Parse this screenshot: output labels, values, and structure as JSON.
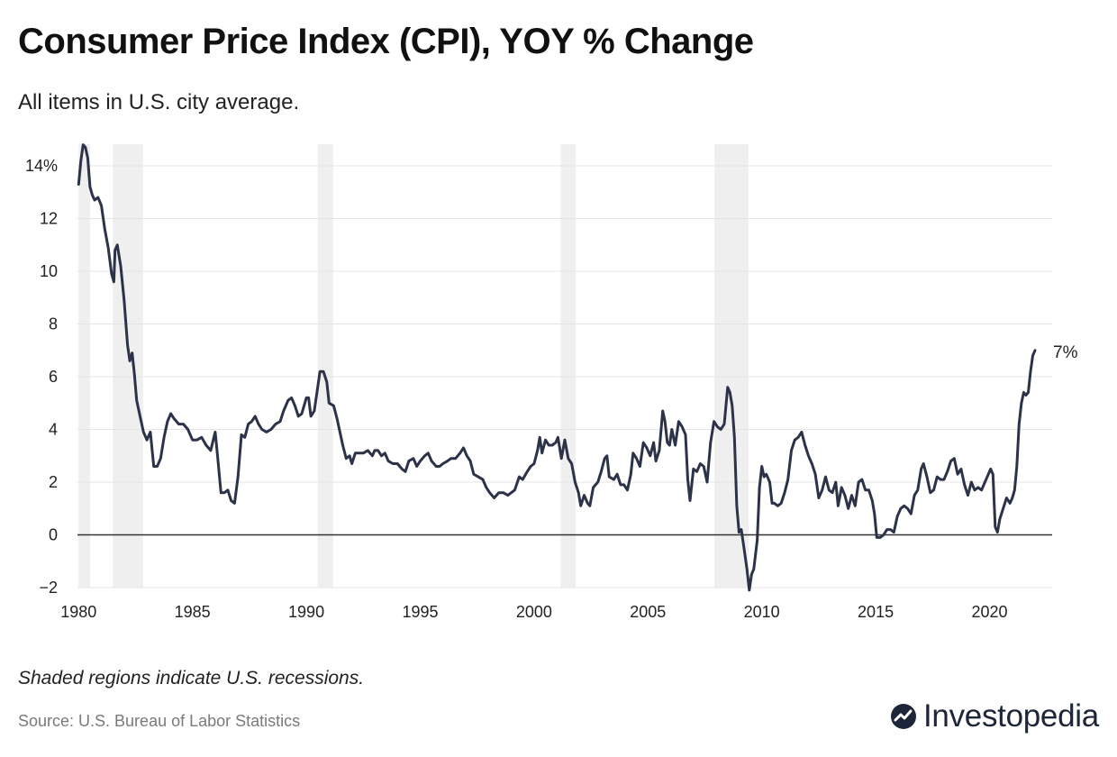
{
  "title": "Consumer Price Index (CPI), YOY % Change",
  "subtitle": "All items in U.S. city average.",
  "note": "Shaded regions indicate U.S. recessions.",
  "source": "Source: U.S. Bureau of Labor Statistics",
  "brand": "Investopedia",
  "colors": {
    "line": "#2c3349",
    "recession": "#efefef",
    "grid": "#e4e4e4",
    "zero_line": "#333333"
  },
  "chart_data": {
    "type": "line",
    "title": "Consumer Price Index (CPI), YOY % Change",
    "xlabel": "",
    "ylabel": "",
    "xlim": [
      1979.95,
      2022.75
    ],
    "ylim": [
      -2,
      14
    ],
    "x_ticks": [
      1980,
      1985,
      1990,
      1995,
      2000,
      2005,
      2010,
      2015,
      2020
    ],
    "y_ticks": [
      -2,
      0,
      2,
      4,
      6,
      8,
      10,
      12,
      14
    ],
    "y_tick_labels": [
      "−2",
      "0",
      "2",
      "4",
      "6",
      "8",
      "10",
      "12",
      "14%"
    ],
    "grid": true,
    "recessions": [
      [
        1980.0,
        1980.5
      ],
      [
        1981.5,
        1982.83
      ],
      [
        1990.5,
        1991.17
      ],
      [
        2001.17,
        2001.83
      ],
      [
        2007.92,
        2009.42
      ]
    ],
    "end_label": "7%",
    "series": [
      {
        "name": "CPI YOY % change",
        "points": [
          [
            1980.0,
            13.3
          ],
          [
            1980.1,
            14.2
          ],
          [
            1980.2,
            14.8
          ],
          [
            1980.3,
            14.7
          ],
          [
            1980.4,
            14.3
          ],
          [
            1980.5,
            13.2
          ],
          [
            1980.6,
            12.9
          ],
          [
            1980.7,
            12.7
          ],
          [
            1980.85,
            12.8
          ],
          [
            1981.0,
            12.5
          ],
          [
            1981.15,
            11.6
          ],
          [
            1981.3,
            10.9
          ],
          [
            1981.45,
            9.9
          ],
          [
            1981.55,
            9.6
          ],
          [
            1981.6,
            10.8
          ],
          [
            1981.7,
            11.0
          ],
          [
            1981.85,
            10.2
          ],
          [
            1982.0,
            8.9
          ],
          [
            1982.15,
            7.2
          ],
          [
            1982.25,
            6.6
          ],
          [
            1982.35,
            6.9
          ],
          [
            1982.45,
            6.1
          ],
          [
            1982.55,
            5.1
          ],
          [
            1982.7,
            4.5
          ],
          [
            1982.85,
            3.9
          ],
          [
            1983.0,
            3.6
          ],
          [
            1983.15,
            3.9
          ],
          [
            1983.3,
            2.6
          ],
          [
            1983.45,
            2.6
          ],
          [
            1983.6,
            2.9
          ],
          [
            1983.75,
            3.7
          ],
          [
            1983.9,
            4.3
          ],
          [
            1984.05,
            4.6
          ],
          [
            1984.2,
            4.4
          ],
          [
            1984.4,
            4.2
          ],
          [
            1984.6,
            4.2
          ],
          [
            1984.8,
            4.0
          ],
          [
            1985.0,
            3.6
          ],
          [
            1985.2,
            3.6
          ],
          [
            1985.4,
            3.7
          ],
          [
            1985.6,
            3.4
          ],
          [
            1985.8,
            3.2
          ],
          [
            1986.0,
            3.9
          ],
          [
            1986.1,
            3.0
          ],
          [
            1986.25,
            1.6
          ],
          [
            1986.4,
            1.6
          ],
          [
            1986.55,
            1.7
          ],
          [
            1986.7,
            1.3
          ],
          [
            1986.85,
            1.2
          ],
          [
            1987.0,
            2.2
          ],
          [
            1987.15,
            3.8
          ],
          [
            1987.3,
            3.7
          ],
          [
            1987.45,
            4.2
          ],
          [
            1987.6,
            4.3
          ],
          [
            1987.75,
            4.5
          ],
          [
            1987.9,
            4.2
          ],
          [
            1988.05,
            4.0
          ],
          [
            1988.25,
            3.9
          ],
          [
            1988.45,
            4.0
          ],
          [
            1988.65,
            4.2
          ],
          [
            1988.85,
            4.3
          ],
          [
            1989.0,
            4.7
          ],
          [
            1989.2,
            5.1
          ],
          [
            1989.35,
            5.2
          ],
          [
            1989.5,
            4.9
          ],
          [
            1989.65,
            4.5
          ],
          [
            1989.8,
            4.6
          ],
          [
            1990.0,
            5.2
          ],
          [
            1990.1,
            5.2
          ],
          [
            1990.2,
            4.5
          ],
          [
            1990.35,
            4.7
          ],
          [
            1990.5,
            5.6
          ],
          [
            1990.6,
            6.2
          ],
          [
            1990.75,
            6.2
          ],
          [
            1990.9,
            5.8
          ],
          [
            1991.0,
            5.0
          ],
          [
            1991.2,
            4.9
          ],
          [
            1991.35,
            4.4
          ],
          [
            1991.5,
            3.8
          ],
          [
            1991.6,
            3.4
          ],
          [
            1991.75,
            2.9
          ],
          [
            1991.9,
            3.0
          ],
          [
            1992.0,
            2.7
          ],
          [
            1992.15,
            3.1
          ],
          [
            1992.35,
            3.1
          ],
          [
            1992.5,
            3.1
          ],
          [
            1992.7,
            3.2
          ],
          [
            1992.9,
            3.0
          ],
          [
            1993.0,
            3.2
          ],
          [
            1993.15,
            3.2
          ],
          [
            1993.3,
            3.0
          ],
          [
            1993.45,
            3.1
          ],
          [
            1993.6,
            2.8
          ],
          [
            1993.8,
            2.7
          ],
          [
            1994.0,
            2.7
          ],
          [
            1994.2,
            2.5
          ],
          [
            1994.35,
            2.4
          ],
          [
            1994.5,
            2.8
          ],
          [
            1994.7,
            2.9
          ],
          [
            1994.85,
            2.6
          ],
          [
            1995.0,
            2.8
          ],
          [
            1995.2,
            3.0
          ],
          [
            1995.35,
            3.1
          ],
          [
            1995.5,
            2.8
          ],
          [
            1995.7,
            2.6
          ],
          [
            1995.85,
            2.6
          ],
          [
            1996.0,
            2.7
          ],
          [
            1996.2,
            2.8
          ],
          [
            1996.35,
            2.9
          ],
          [
            1996.55,
            2.9
          ],
          [
            1996.75,
            3.1
          ],
          [
            1996.9,
            3.3
          ],
          [
            1997.05,
            3.0
          ],
          [
            1997.2,
            2.8
          ],
          [
            1997.35,
            2.3
          ],
          [
            1997.55,
            2.2
          ],
          [
            1997.75,
            2.1
          ],
          [
            1997.9,
            1.8
          ],
          [
            1998.05,
            1.6
          ],
          [
            1998.25,
            1.4
          ],
          [
            1998.45,
            1.6
          ],
          [
            1998.65,
            1.6
          ],
          [
            1998.85,
            1.5
          ],
          [
            1999.0,
            1.6
          ],
          [
            1999.15,
            1.7
          ],
          [
            1999.35,
            2.2
          ],
          [
            1999.5,
            2.1
          ],
          [
            1999.7,
            2.4
          ],
          [
            1999.85,
            2.6
          ],
          [
            2000.0,
            2.7
          ],
          [
            2000.15,
            3.2
          ],
          [
            2000.25,
            3.7
          ],
          [
            2000.35,
            3.1
          ],
          [
            2000.5,
            3.6
          ],
          [
            2000.65,
            3.4
          ],
          [
            2000.8,
            3.4
          ],
          [
            2000.95,
            3.5
          ],
          [
            2001.05,
            3.7
          ],
          [
            2001.2,
            2.9
          ],
          [
            2001.35,
            3.6
          ],
          [
            2001.5,
            2.9
          ],
          [
            2001.65,
            2.7
          ],
          [
            2001.8,
            2.0
          ],
          [
            2001.95,
            1.6
          ],
          [
            2002.05,
            1.1
          ],
          [
            2002.2,
            1.5
          ],
          [
            2002.35,
            1.2
          ],
          [
            2002.45,
            1.1
          ],
          [
            2002.6,
            1.8
          ],
          [
            2002.8,
            2.0
          ],
          [
            2002.95,
            2.4
          ],
          [
            2003.1,
            2.9
          ],
          [
            2003.2,
            3.0
          ],
          [
            2003.3,
            2.2
          ],
          [
            2003.5,
            2.1
          ],
          [
            2003.65,
            2.3
          ],
          [
            2003.8,
            1.9
          ],
          [
            2003.95,
            1.9
          ],
          [
            2004.1,
            1.7
          ],
          [
            2004.25,
            2.3
          ],
          [
            2004.35,
            3.1
          ],
          [
            2004.5,
            2.9
          ],
          [
            2004.65,
            2.6
          ],
          [
            2004.8,
            3.5
          ],
          [
            2004.95,
            3.3
          ],
          [
            2005.1,
            3.0
          ],
          [
            2005.25,
            3.5
          ],
          [
            2005.35,
            2.8
          ],
          [
            2005.5,
            3.2
          ],
          [
            2005.65,
            4.7
          ],
          [
            2005.75,
            4.3
          ],
          [
            2005.85,
            3.5
          ],
          [
            2005.95,
            3.4
          ],
          [
            2006.05,
            4.0
          ],
          [
            2006.2,
            3.4
          ],
          [
            2006.35,
            4.3
          ],
          [
            2006.5,
            4.1
          ],
          [
            2006.65,
            3.8
          ],
          [
            2006.75,
            2.1
          ],
          [
            2006.85,
            1.3
          ],
          [
            2007.0,
            2.5
          ],
          [
            2007.15,
            2.4
          ],
          [
            2007.3,
            2.7
          ],
          [
            2007.45,
            2.6
          ],
          [
            2007.6,
            2.0
          ],
          [
            2007.75,
            3.5
          ],
          [
            2007.9,
            4.3
          ],
          [
            2008.05,
            4.1
          ],
          [
            2008.2,
            4.0
          ],
          [
            2008.35,
            4.2
          ],
          [
            2008.5,
            5.6
          ],
          [
            2008.6,
            5.4
          ],
          [
            2008.7,
            4.9
          ],
          [
            2008.8,
            3.7
          ],
          [
            2008.9,
            1.1
          ],
          [
            2009.0,
            0.1
          ],
          [
            2009.1,
            0.2
          ],
          [
            2009.2,
            -0.4
          ],
          [
            2009.35,
            -1.3
          ],
          [
            2009.45,
            -2.1
          ],
          [
            2009.55,
            -1.5
          ],
          [
            2009.65,
            -1.3
          ],
          [
            2009.8,
            -0.2
          ],
          [
            2009.9,
            1.8
          ],
          [
            2010.0,
            2.6
          ],
          [
            2010.1,
            2.2
          ],
          [
            2010.2,
            2.3
          ],
          [
            2010.35,
            2.0
          ],
          [
            2010.45,
            1.2
          ],
          [
            2010.55,
            1.2
          ],
          [
            2010.7,
            1.1
          ],
          [
            2010.85,
            1.2
          ],
          [
            2011.0,
            1.6
          ],
          [
            2011.15,
            2.1
          ],
          [
            2011.3,
            3.2
          ],
          [
            2011.45,
            3.6
          ],
          [
            2011.6,
            3.7
          ],
          [
            2011.75,
            3.9
          ],
          [
            2011.9,
            3.4
          ],
          [
            2012.05,
            3.0
          ],
          [
            2012.2,
            2.7
          ],
          [
            2012.35,
            2.3
          ],
          [
            2012.5,
            1.4
          ],
          [
            2012.65,
            1.7
          ],
          [
            2012.8,
            2.2
          ],
          [
            2012.95,
            1.7
          ],
          [
            2013.1,
            1.6
          ],
          [
            2013.25,
            2.0
          ],
          [
            2013.35,
            1.1
          ],
          [
            2013.5,
            1.8
          ],
          [
            2013.65,
            1.5
          ],
          [
            2013.8,
            1.0
          ],
          [
            2013.95,
            1.5
          ],
          [
            2014.1,
            1.1
          ],
          [
            2014.25,
            2.0
          ],
          [
            2014.4,
            2.1
          ],
          [
            2014.55,
            1.7
          ],
          [
            2014.7,
            1.7
          ],
          [
            2014.85,
            1.3
          ],
          [
            2014.95,
            0.8
          ],
          [
            2015.05,
            -0.1
          ],
          [
            2015.2,
            -0.1
          ],
          [
            2015.35,
            0.0
          ],
          [
            2015.5,
            0.2
          ],
          [
            2015.65,
            0.2
          ],
          [
            2015.8,
            0.1
          ],
          [
            2015.95,
            0.7
          ],
          [
            2016.1,
            1.0
          ],
          [
            2016.25,
            1.1
          ],
          [
            2016.4,
            1.0
          ],
          [
            2016.55,
            0.8
          ],
          [
            2016.7,
            1.5
          ],
          [
            2016.85,
            1.7
          ],
          [
            2017.0,
            2.5
          ],
          [
            2017.1,
            2.7
          ],
          [
            2017.25,
            2.2
          ],
          [
            2017.4,
            1.6
          ],
          [
            2017.55,
            1.7
          ],
          [
            2017.7,
            2.2
          ],
          [
            2017.85,
            2.1
          ],
          [
            2018.0,
            2.1
          ],
          [
            2018.15,
            2.4
          ],
          [
            2018.3,
            2.8
          ],
          [
            2018.45,
            2.9
          ],
          [
            2018.6,
            2.3
          ],
          [
            2018.75,
            2.5
          ],
          [
            2018.9,
            1.9
          ],
          [
            2019.05,
            1.5
          ],
          [
            2019.2,
            2.0
          ],
          [
            2019.35,
            1.7
          ],
          [
            2019.5,
            1.8
          ],
          [
            2019.65,
            1.7
          ],
          [
            2019.8,
            2.0
          ],
          [
            2019.95,
            2.3
          ],
          [
            2020.05,
            2.5
          ],
          [
            2020.15,
            2.3
          ],
          [
            2020.25,
            0.3
          ],
          [
            2020.35,
            0.1
          ],
          [
            2020.45,
            0.6
          ],
          [
            2020.6,
            1.0
          ],
          [
            2020.75,
            1.4
          ],
          [
            2020.9,
            1.2
          ],
          [
            2021.0,
            1.4
          ],
          [
            2021.1,
            1.7
          ],
          [
            2021.2,
            2.6
          ],
          [
            2021.3,
            4.2
          ],
          [
            2021.4,
            5.0
          ],
          [
            2021.5,
            5.4
          ],
          [
            2021.6,
            5.3
          ],
          [
            2021.7,
            5.4
          ],
          [
            2021.8,
            6.2
          ],
          [
            2021.9,
            6.8
          ],
          [
            2022.0,
            7.0
          ]
        ]
      }
    ]
  }
}
